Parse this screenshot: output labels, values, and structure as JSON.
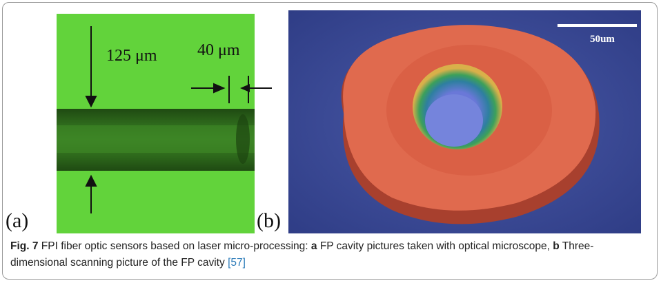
{
  "figure": {
    "panel_a": {
      "label": "(a)",
      "annotations": [
        "125 μm",
        "40 μm"
      ]
    },
    "panel_b": {
      "label": "(b)",
      "scale_bar": "50um"
    }
  },
  "caption": {
    "figure_label": "Fig. 7",
    "text_1": " FPI fiber optic sensors based on laser micro-processing: ",
    "part_a": "a",
    "text_2": " FP cavity pictures taken with optical microscope, ",
    "part_b": "b",
    "text_3": " Three-dimensional scanning picture of the FP cavity ",
    "reference": "[57]"
  }
}
